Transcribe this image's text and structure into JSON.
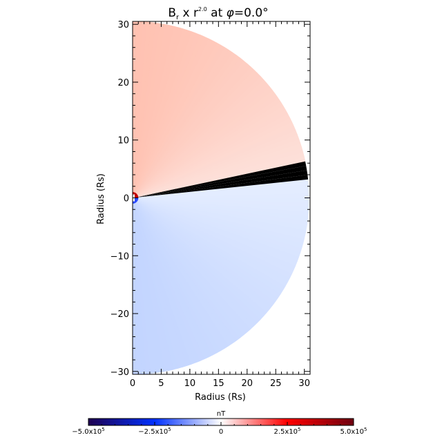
{
  "chart_data": {
    "type": "heatmap",
    "title": {
      "prefix": "B",
      "sub": "r",
      "mid": " x r",
      "sup": "2.0",
      "suffix_a": " at ",
      "phi": "φ",
      "suffix_b": "=0.0°"
    },
    "xlabel": "Radius (Rs)",
    "ylabel": "Radius (Rs)",
    "xlim": [
      0,
      31
    ],
    "ylim": [
      -30.5,
      30.5
    ],
    "x_ticks": [
      "0",
      "5",
      "10",
      "15",
      "20",
      "25",
      "30"
    ],
    "x_tick_values": [
      0,
      5,
      10,
      15,
      20,
      25,
      30
    ],
    "y_ticks": [
      "30",
      "20",
      "10",
      "0",
      "−10",
      "−20",
      "−30"
    ],
    "y_tick_values": [
      30,
      20,
      10,
      0,
      -10,
      -20,
      -30
    ],
    "domain": {
      "r_inner": 1.0,
      "r_outer": 30.5,
      "current_sheet_latitude_deg": 9
    },
    "colorbar": {
      "label": "nT",
      "range": [
        -500000,
        500000
      ],
      "tick_labels": [
        {
          "base": "−5.0x10",
          "exp": "5",
          "value": -500000
        },
        {
          "base": "−2.5x10",
          "exp": "5",
          "value": -250000
        },
        {
          "base": "0",
          "exp": "",
          "value": 0
        },
        {
          "base": "2.5x10",
          "exp": "5",
          "value": 250000
        },
        {
          "base": "5.0x10",
          "exp": "5",
          "value": 500000
        }
      ],
      "colors": [
        "#1e0050",
        "#0030ff",
        "#ffffff",
        "#ff0000",
        "#6e0010"
      ]
    },
    "field_colors": {
      "positive_near": "#ffc2b2",
      "positive_far": "#fde2dc",
      "negative_near": "#c3d5ff",
      "negative_far": "#e6eeff",
      "sheet": "#ffffff",
      "core_positive": "#c00000",
      "core_negative": "#2b4aff"
    }
  }
}
